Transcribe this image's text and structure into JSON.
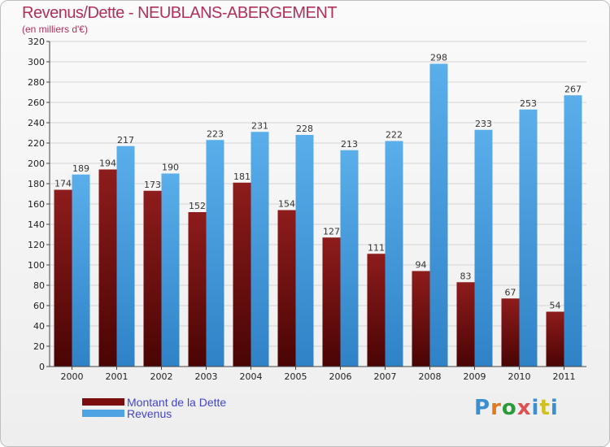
{
  "title": "Revenus/Dette - NEUBLANS-ABERGEMENT",
  "subtitle": "(en milliers d'€)",
  "logo": {
    "text": "Proxiti",
    "colors": [
      "#3a8fd0",
      "#e07a1f",
      "#2a9a3a",
      "#e05050",
      "#3a8fd0",
      "#d0c020",
      "#3a8fd0"
    ]
  },
  "legend": [
    {
      "label": "Montant de la Dette",
      "color": "#7a0d0d"
    },
    {
      "label": "Revenus",
      "color": "#4ea3e3"
    }
  ],
  "chart_data": {
    "type": "bar",
    "categories": [
      "2000",
      "2001",
      "2002",
      "2003",
      "2004",
      "2005",
      "2006",
      "2007",
      "2008",
      "2009",
      "2010",
      "2011"
    ],
    "series": [
      {
        "name": "Montant de la Dette",
        "color": "#7a0d0d",
        "values": [
          174,
          194,
          173,
          152,
          181,
          154,
          127,
          111,
          94,
          83,
          67,
          54
        ]
      },
      {
        "name": "Revenus",
        "color": "#4ea3e3",
        "values": [
          189,
          217,
          190,
          223,
          231,
          228,
          213,
          222,
          298,
          233,
          253,
          267
        ]
      }
    ],
    "ylim": [
      0,
      320
    ],
    "ytick_step": 20,
    "grid": true,
    "legend_position": "bottom-left"
  }
}
